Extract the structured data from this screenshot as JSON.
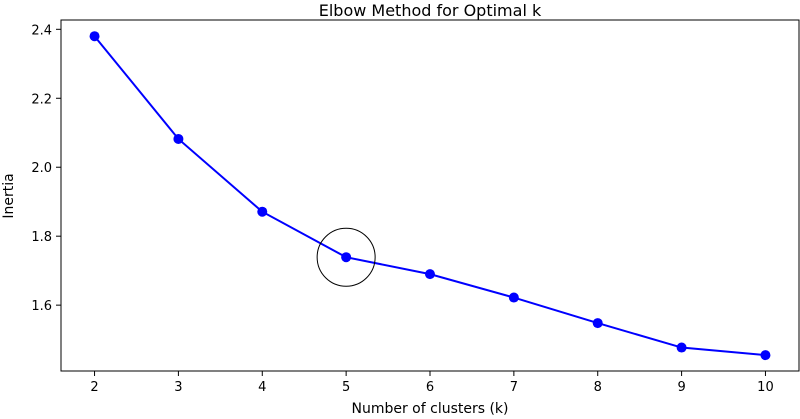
{
  "chart_data": {
    "type": "line",
    "title": "Elbow Method for Optimal k",
    "xlabel": "Number of clusters (k)",
    "ylabel": "Inertia",
    "x": [
      2,
      3,
      4,
      5,
      6,
      7,
      8,
      9,
      10
    ],
    "series": [
      {
        "name": "Inertia",
        "color": "#0000ff",
        "marker": "circle",
        "values": [
          2.38,
          2.082,
          1.871,
          1.739,
          1.69,
          1.622,
          1.548,
          1.477,
          1.455
        ]
      }
    ],
    "xlim": [
      1.6,
      10.4
    ],
    "ylim": [
      1.409,
      2.427
    ],
    "xticks": [
      2,
      3,
      4,
      5,
      6,
      7,
      8,
      9,
      10
    ],
    "yticks": [
      1.6,
      1.8,
      2.0,
      2.2,
      2.4
    ],
    "ytick_labels": [
      "1.6",
      "1.8",
      "2.0",
      "2.2",
      "2.4"
    ],
    "grid": false,
    "annotations": [
      {
        "type": "circle",
        "x": 5,
        "y": 1.739,
        "note": "elbow point"
      }
    ]
  }
}
